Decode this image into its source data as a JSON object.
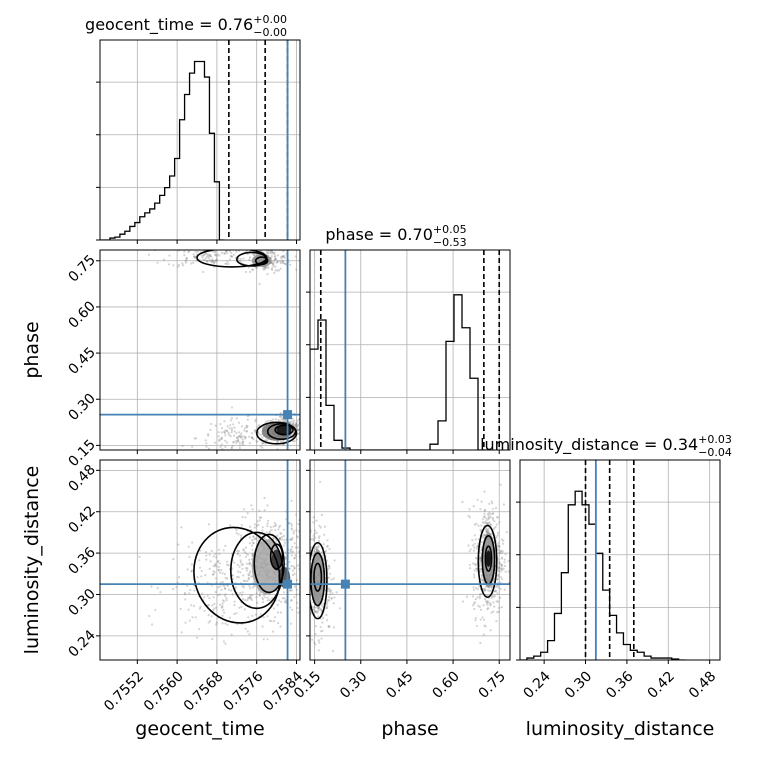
{
  "chart_data": {
    "type": "corner",
    "grid": true,
    "parameters": [
      {
        "name": "geocent_time",
        "label": "geocent_time",
        "range": [
          0.75445,
          0.75847
        ],
        "ticks": [
          "0.7552",
          "0.7560",
          "0.7568",
          "0.7576",
          "0.7584"
        ],
        "tick_values": [
          0.7552,
          0.756,
          0.7568,
          0.7576,
          0.7584
        ],
        "truth": 0.75822,
        "title_name": "geocent_time",
        "median": "0.76",
        "plus": "+0.00",
        "minus": "−0.00",
        "quantiles": [
          0.75704,
          0.75777,
          0.75822
        ],
        "hist": {
          "start": 0.75445,
          "width": 0.0001,
          "counts": [
            0,
            0,
            0.01,
            0.015,
            0.03,
            0.045,
            0.07,
            0.09,
            0.12,
            0.14,
            0.16,
            0.19,
            0.23,
            0.27,
            0.33,
            0.42,
            0.62,
            0.75,
            0.86,
            0.92,
            0.92,
            0.84,
            0.55,
            0.3,
            0
          ]
        }
      },
      {
        "name": "phase",
        "label": "phase",
        "range": [
          0.135,
          0.785
        ],
        "ticks": [
          "0.15",
          "0.30",
          "0.45",
          "0.60",
          "0.75"
        ],
        "tick_values": [
          0.15,
          0.3,
          0.45,
          0.6,
          0.75
        ],
        "truth": 0.25,
        "title_name": "phase",
        "median": "0.70",
        "plus": "+0.05",
        "minus": "−0.53",
        "quantiles": [
          0.17,
          0.7,
          0.75
        ],
        "hist": {
          "start": 0.135,
          "width": 0.026,
          "counts": [
            0.52,
            0.67,
            0.23,
            0.05,
            0.01,
            0,
            0,
            0,
            0,
            0,
            0,
            0,
            0,
            0,
            0,
            0.03,
            0.15,
            0.56,
            0.8,
            0.63,
            0.37,
            0
          ]
        }
      },
      {
        "name": "luminosity_distance",
        "label": "luminosity_distance",
        "range": [
          0.205,
          0.495
        ],
        "ticks": [
          "0.24",
          "0.30",
          "0.36",
          "0.42",
          "0.48"
        ],
        "tick_values": [
          0.24,
          0.3,
          0.36,
          0.42,
          0.48
        ],
        "truth": 0.315,
        "title_name": "luminosity_distance",
        "median": "0.34",
        "plus": "+0.03",
        "minus": "−0.04",
        "quantiles": [
          0.3,
          0.335,
          0.37
        ],
        "hist": {
          "start": 0.205,
          "width": 0.01,
          "counts": [
            0,
            0.01,
            0.02,
            0.04,
            0.1,
            0.24,
            0.45,
            0.8,
            0.87,
            0.8,
            0.7,
            0.55,
            0.36,
            0.23,
            0.14,
            0.08,
            0.05,
            0.04,
            0.02,
            0.01,
            0.01,
            0.01,
            0.005,
            0
          ]
        }
      }
    ],
    "joint": [
      {
        "x": "geocent_time",
        "y": "phase",
        "clusters": [
          {
            "cx": 0.7582,
            "cy": 0.205,
            "sx": 0.00018,
            "sy": 0.02,
            "n": 300
          },
          {
            "cx": 0.7573,
            "cy": 0.175,
            "sx": 0.00045,
            "sy": 0.03,
            "n": 160
          },
          {
            "cx": 0.7578,
            "cy": 0.755,
            "sx": 0.00025,
            "sy": 0.02,
            "n": 180
          },
          {
            "cx": 0.7566,
            "cy": 0.765,
            "sx": 0.0004,
            "sy": 0.018,
            "n": 120
          }
        ],
        "contours": [
          {
            "cx": 0.75815,
            "cy": 0.2,
            "rx": 0.00018,
            "ry": 0.015,
            "rot": 0
          },
          {
            "cx": 0.7581,
            "cy": 0.195,
            "rx": 0.00028,
            "ry": 0.025,
            "rot": 0
          },
          {
            "cx": 0.758,
            "cy": 0.19,
            "rx": 0.0004,
            "ry": 0.035,
            "rot": 0
          },
          {
            "cx": 0.7577,
            "cy": 0.75,
            "rx": 0.00012,
            "ry": 0.012,
            "rot": 0
          },
          {
            "cx": 0.7575,
            "cy": 0.755,
            "rx": 0.0003,
            "ry": 0.022,
            "rot": 0
          },
          {
            "cx": 0.7571,
            "cy": 0.76,
            "rx": 0.0007,
            "ry": 0.03,
            "rot": 0
          }
        ],
        "density": [
          {
            "x": 0.75815,
            "y": 0.2,
            "w": 0.00015,
            "h": 0.018,
            "shade": 0.05
          },
          {
            "x": 0.758,
            "y": 0.195,
            "w": 0.0003,
            "h": 0.03,
            "shade": 0.45
          },
          {
            "x": 0.7577,
            "y": 0.75,
            "w": 0.0002,
            "h": 0.02,
            "shade": 0.55
          }
        ]
      },
      {
        "x": "geocent_time",
        "y": "luminosity_distance",
        "clusters": [
          {
            "cx": 0.7579,
            "cy": 0.345,
            "sx": 0.00035,
            "sy": 0.035,
            "n": 520
          },
          {
            "cx": 0.7569,
            "cy": 0.31,
            "sx": 0.00055,
            "sy": 0.035,
            "n": 260
          }
        ],
        "contours": [
          {
            "cx": 0.758,
            "cy": 0.355,
            "rx": 0.00012,
            "ry": 0.018,
            "rot": 0
          },
          {
            "cx": 0.75785,
            "cy": 0.345,
            "rx": 0.0003,
            "ry": 0.042,
            "rot": 0
          },
          {
            "cx": 0.7576,
            "cy": 0.335,
            "rx": 0.00052,
            "ry": 0.055,
            "rot": 0
          },
          {
            "cx": 0.7572,
            "cy": 0.328,
            "rx": 0.00085,
            "ry": 0.07,
            "rot": -18
          }
        ],
        "density": [
          {
            "x": 0.758,
            "y": 0.35,
            "w": 0.0001,
            "h": 0.015,
            "shade": 0.15
          },
          {
            "x": 0.75815,
            "y": 0.325,
            "w": 0.00012,
            "h": 0.015,
            "shade": 0.25
          },
          {
            "x": 0.7578,
            "y": 0.34,
            "w": 0.0003,
            "h": 0.04,
            "shade": 0.65
          }
        ]
      },
      {
        "x": "phase",
        "y": "luminosity_distance",
        "clusters": [
          {
            "cx": 0.715,
            "cy": 0.35,
            "sx": 0.025,
            "sy": 0.04,
            "n": 520
          },
          {
            "cx": 0.16,
            "cy": 0.32,
            "sx": 0.022,
            "sy": 0.04,
            "n": 360
          }
        ],
        "contours": [
          {
            "cx": 0.715,
            "cy": 0.352,
            "rx": 0.01,
            "ry": 0.018,
            "rot": 0
          },
          {
            "cx": 0.715,
            "cy": 0.35,
            "rx": 0.02,
            "ry": 0.035,
            "rot": 0
          },
          {
            "cx": 0.712,
            "cy": 0.348,
            "rx": 0.03,
            "ry": 0.052,
            "rot": 0
          },
          {
            "cx": 0.16,
            "cy": 0.325,
            "rx": 0.012,
            "ry": 0.02,
            "rot": 0
          },
          {
            "cx": 0.16,
            "cy": 0.322,
            "rx": 0.022,
            "ry": 0.038,
            "rot": 0
          },
          {
            "cx": 0.16,
            "cy": 0.32,
            "rx": 0.03,
            "ry": 0.055,
            "rot": 0
          }
        ],
        "density": [
          {
            "x": 0.715,
            "y": 0.352,
            "w": 0.008,
            "h": 0.012,
            "shade": 0.0
          },
          {
            "x": 0.715,
            "y": 0.35,
            "w": 0.022,
            "h": 0.04,
            "shade": 0.55
          },
          {
            "x": 0.16,
            "y": 0.325,
            "w": 0.02,
            "h": 0.04,
            "shade": 0.55
          }
        ]
      }
    ],
    "colors": {
      "truth": "#4682b4",
      "grid": "#b0b0b0",
      "line": "#000000",
      "points": "#808080"
    }
  }
}
